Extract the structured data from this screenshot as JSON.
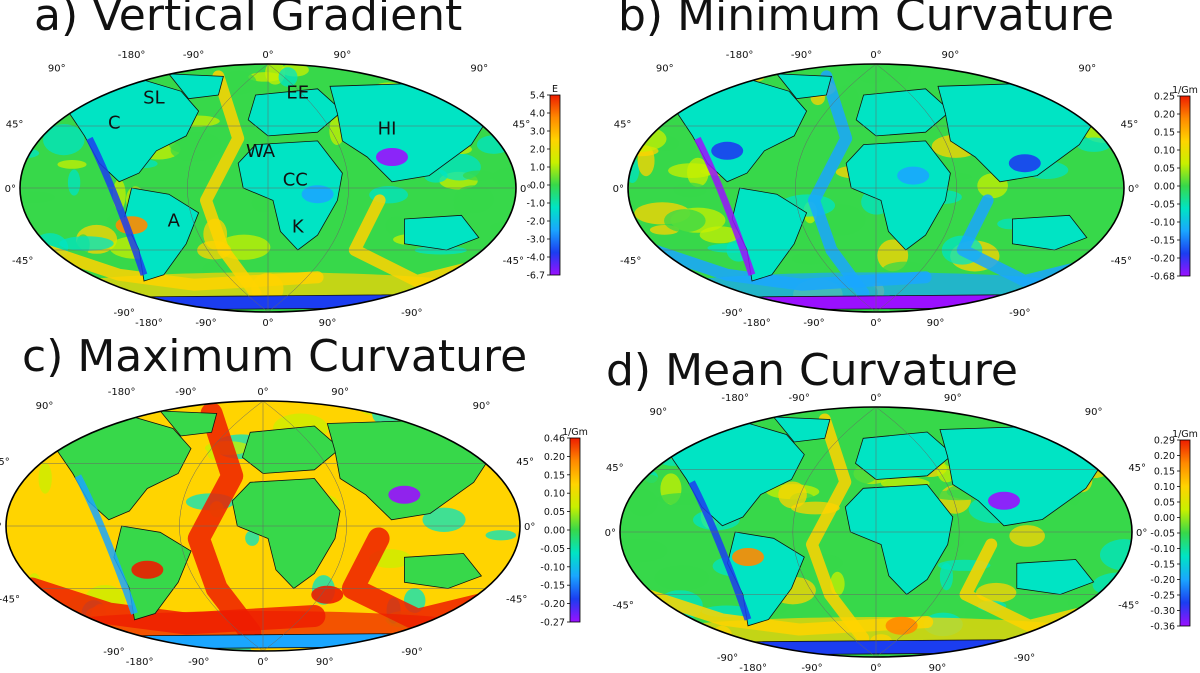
{
  "panels": [
    {
      "id": "a",
      "title": "a) Vertical Gradient",
      "colorbar": {
        "unit": "E",
        "labels": [
          "5.4",
          "4.0",
          "3.0",
          "2.0",
          "1.0",
          "0.0",
          "-1.0",
          "-2.0",
          "-3.0",
          "-4.0",
          "-6.7"
        ]
      },
      "top_lon_labels": [
        "-180°",
        "-90°",
        "0°",
        "90°"
      ],
      "bottom_lon_labels": [
        "-90°",
        "-180°",
        "-90°",
        "0°",
        "90°",
        "-90°"
      ],
      "left_lat_labels": [
        "90°",
        "45°",
        "0°",
        "-45°"
      ],
      "right_lat_labels": [
        "90°",
        "45°",
        "0°",
        "-45°"
      ],
      "region_labels": [
        "SL",
        "C",
        "EE",
        "HI",
        "WA",
        "CC",
        "A",
        "K"
      ]
    },
    {
      "id": "b",
      "title": "b) Minimum Curvature",
      "colorbar": {
        "unit": "1/Gm",
        "labels": [
          "0.25",
          "0.20",
          "0.15",
          "0.10",
          "0.05",
          "0.00",
          "-0.05",
          "-0.10",
          "-0.15",
          "-0.20",
          "-0.68"
        ]
      },
      "top_lon_labels": [
        "-180°",
        "-90°",
        "0°",
        "90°"
      ],
      "bottom_lon_labels": [
        "-90°",
        "-180°",
        "-90°",
        "0°",
        "90°",
        "-90°"
      ],
      "left_lat_labels": [
        "90°",
        "45°",
        "0°",
        "-45°"
      ],
      "right_lat_labels": [
        "90°",
        "45°",
        "0°",
        "-45°"
      ],
      "region_labels": []
    },
    {
      "id": "c",
      "title": "c) Maximum Curvature",
      "colorbar": {
        "unit": "1/Gm",
        "labels": [
          "0.46",
          "0.20",
          "0.15",
          "0.10",
          "0.05",
          "0.00",
          "-0.05",
          "-0.10",
          "-0.15",
          "-0.20",
          "-0.27"
        ]
      },
      "top_lon_labels": [
        "-180°",
        "-90°",
        "0°",
        "90°"
      ],
      "bottom_lon_labels": [
        "-90°",
        "-180°",
        "-90°",
        "0°",
        "90°",
        "-90°"
      ],
      "left_lat_labels": [
        "90°",
        "45°",
        "0°",
        "-45°"
      ],
      "right_lat_labels": [
        "90°",
        "45°",
        "0°",
        "-45°"
      ],
      "region_labels": []
    },
    {
      "id": "d",
      "title": "d) Mean Curvature",
      "colorbar": {
        "unit": "1/Gm",
        "labels": [
          "0.29",
          "0.20",
          "0.15",
          "0.10",
          "0.05",
          "0.00",
          "-0.05",
          "-0.10",
          "-0.15",
          "-0.20",
          "-0.25",
          "-0.30",
          "-0.36"
        ]
      },
      "top_lon_labels": [
        "-180°",
        "-90°",
        "0°",
        "90°"
      ],
      "bottom_lon_labels": [
        "-90°",
        "-180°",
        "-90°",
        "0°",
        "90°",
        "-90°"
      ],
      "left_lat_labels": [
        "90°",
        "45°",
        "0°",
        "-45°"
      ],
      "right_lat_labels": [
        "90°",
        "45°",
        "0°",
        "-45°"
      ],
      "region_labels": []
    }
  ],
  "colormap": [
    "#ee1d00",
    "#ff8a00",
    "#ffd400",
    "#c8f000",
    "#37d84a",
    "#00e4c4",
    "#1aa6ff",
    "#1b3df0",
    "#9a10ff"
  ]
}
